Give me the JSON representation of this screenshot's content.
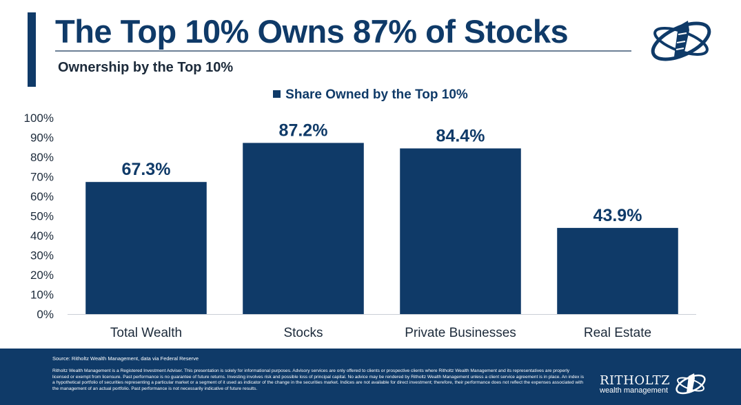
{
  "header": {
    "title": "The Top 10% Owns 87% of Stocks",
    "subtitle": "Ownership by the Top 10%"
  },
  "colors": {
    "brand": "#0f3a68",
    "footer_bg": "#0f3a68",
    "text_dark": "#1c2a3a",
    "rule": "#6b7f95"
  },
  "chart_data": {
    "type": "bar",
    "title": "",
    "categories": [
      "Total Wealth",
      "Stocks",
      "Private Businesses",
      "Real Estate"
    ],
    "series": [
      {
        "name": "Share Owned by the Top 10%",
        "values": [
          67.3,
          87.2,
          84.4,
          43.9
        ]
      }
    ],
    "data_labels": [
      "67.3%",
      "87.2%",
      "84.4%",
      "43.9%"
    ],
    "y_ticks": [
      "0%",
      "10%",
      "20%",
      "30%",
      "40%",
      "50%",
      "60%",
      "70%",
      "80%",
      "90%",
      "100%"
    ],
    "ylim": [
      0,
      100
    ],
    "xlabel": "",
    "ylabel": "",
    "grid": false,
    "legend_position": "top-center"
  },
  "footer": {
    "source": "Source: Ritholtz Wealth Management, data via Federal Reserve",
    "disclaimer": "Ritholtz Wealth Management is a Registered Investment Adviser. This presentation is solely for informational purposes. Advisory services are only offered to clients or prospective clients where Ritholtz Wealth Management and its representatives are properly licensed or exempt from licensure. Past performance is no guarantee of future returns. Investing involves risk and possible loss of principal capital. No advice may be rendered by Ritholtz Wealth Management unless a client service agreement is in place. An index is a hypothetical portfolio of securities representing a particular market or a segment of it used as indicator of the change in the securities market. Indices are not available for direct investment; therefore, their performance does not reflect the expenses associated with the management of an actual portfolio. Past performance is not necessarily indicative of future results.",
    "brand_name": "RITHOLTZ",
    "brand_sub": "wealth management"
  }
}
